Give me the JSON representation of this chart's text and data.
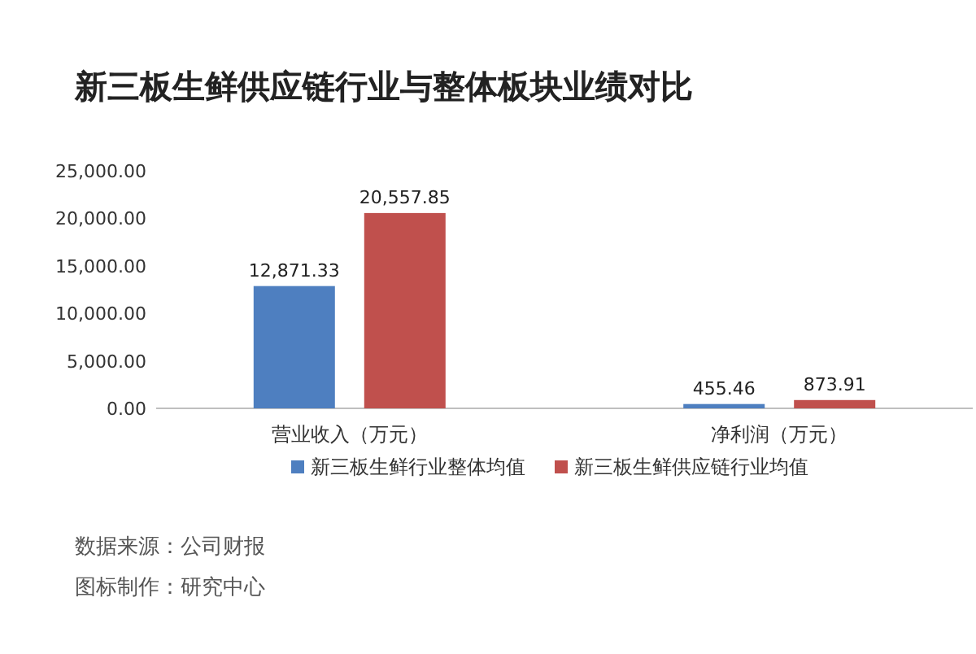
{
  "chart_data": {
    "type": "bar",
    "title": "新三板生鲜供应链行业与整体板块业绩对比",
    "categories": [
      "营业收入（万元）",
      "净利润（万元）"
    ],
    "series": [
      {
        "name": "新三板生鲜行业整体均值",
        "color": "#4e7fc0",
        "values": [
          12871.33,
          455.46
        ],
        "value_labels": [
          "12,871.33",
          "455.46"
        ]
      },
      {
        "name": "新三板生鲜供应链行业均值",
        "color": "#c0504d",
        "values": [
          20557.85,
          873.91
        ],
        "value_labels": [
          "20,557.85",
          "873.91"
        ]
      }
    ],
    "ylim": [
      0,
      25000
    ],
    "yticks": [
      {
        "value": 0,
        "label": "0.00"
      },
      {
        "value": 5000,
        "label": "5,000.00"
      },
      {
        "value": 10000,
        "label": "10,000.00"
      },
      {
        "value": 15000,
        "label": "15,000.00"
      },
      {
        "value": 20000,
        "label": "20,000.00"
      },
      {
        "value": 25000,
        "label": "25,000.00"
      }
    ],
    "grid": false,
    "legend": "bottom",
    "annotations": [
      "数据来源：公司财报",
      "图标制作：研究中心"
    ]
  }
}
